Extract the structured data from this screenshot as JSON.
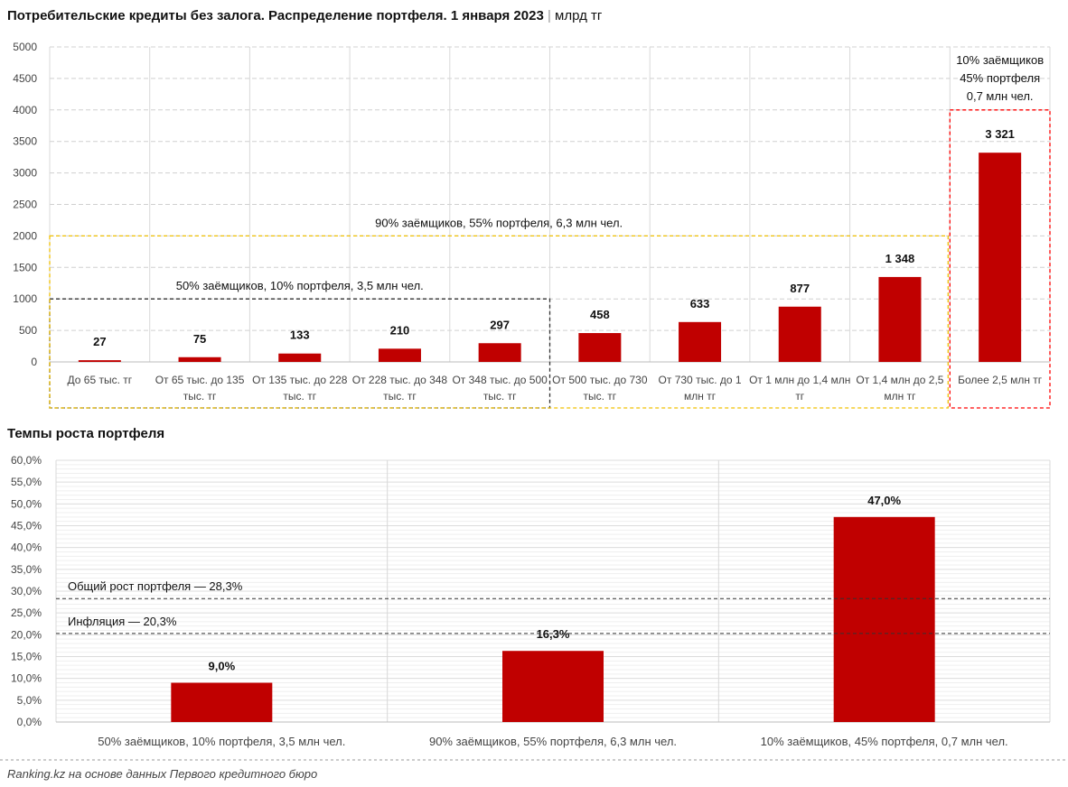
{
  "chart_data": [
    {
      "type": "bar",
      "title": "Потребительские кредиты без залога. Распределение портфеля. 1 января 2023",
      "unit": "млрд тг",
      "categories": [
        "До 65 тыс. тг",
        "От 65 тыс. до 135 тыс. тг",
        "От 135 тыс. до 228 тыс. тг",
        "От 228 тыс. до 348 тыс. тг",
        "От 348 тыс. до 500 тыс. тг",
        "От 500 тыс. до 730 тыс. тг",
        "От 730 тыс. до 1 млн тг",
        "От 1 млн до 1,4 млн тг",
        "От 1,4 млн до 2,5 млн тг",
        "Более 2,5 млн тг"
      ],
      "values": [
        27,
        75,
        133,
        210,
        297,
        458,
        633,
        877,
        1348,
        3321
      ],
      "data_labels": [
        "27",
        "75",
        "133",
        "210",
        "297",
        "458",
        "633",
        "877",
        "1 348",
        "3 321"
      ],
      "yticks": [
        "0",
        "500",
        "1000",
        "1500",
        "2000",
        "2500",
        "3000",
        "3500",
        "4000",
        "4500",
        "5000"
      ],
      "ylim": [
        0,
        5000
      ],
      "grid": true,
      "bar_color": "#c00000",
      "annotations": [
        {
          "text": "50% заёмщиков, 10% портфеля, 3,5 млн чел.",
          "from_category": 0,
          "to_category": 4,
          "level": 1000,
          "color": "#333333"
        },
        {
          "text": "90% заёмщиков, 55% портфеля, 6,3 млн чел.",
          "from_category": 0,
          "to_category": 8,
          "level": 2000,
          "color": "#f0c000"
        },
        {
          "lines": [
            "10% заёмщиков",
            "45% портфеля",
            "0,7 млн чел."
          ],
          "from_category": 9,
          "to_category": 9,
          "level": 4000,
          "color": "#ff0000"
        }
      ]
    },
    {
      "type": "bar",
      "title": "Темпы роста портфеля",
      "categories": [
        "50% заёмщиков, 10% портфеля, 3,5 млн чел.",
        "90% заёмщиков, 55% портфеля, 6,3 млн чел.",
        "10% заёмщиков, 45% портфеля, 0,7 млн чел."
      ],
      "values": [
        9.0,
        16.3,
        47.0
      ],
      "data_labels": [
        "9,0%",
        "16,3%",
        "47,0%"
      ],
      "yticks": [
        "0,0%",
        "5,0%",
        "10,0%",
        "15,0%",
        "20,0%",
        "25,0%",
        "30,0%",
        "35,0%",
        "40,0%",
        "45,0%",
        "50,0%",
        "55,0%",
        "60,0%"
      ],
      "ylim": [
        0,
        60
      ],
      "grid": true,
      "bar_color": "#c00000",
      "reference_lines": [
        {
          "label": "Общий рост портфеля — 28,3%",
          "value": 28.3
        },
        {
          "label": "Инфляция — 20,3%",
          "value": 20.3
        }
      ]
    }
  ],
  "source": "Ranking.kz на основе данных Первого кредитного бюро"
}
